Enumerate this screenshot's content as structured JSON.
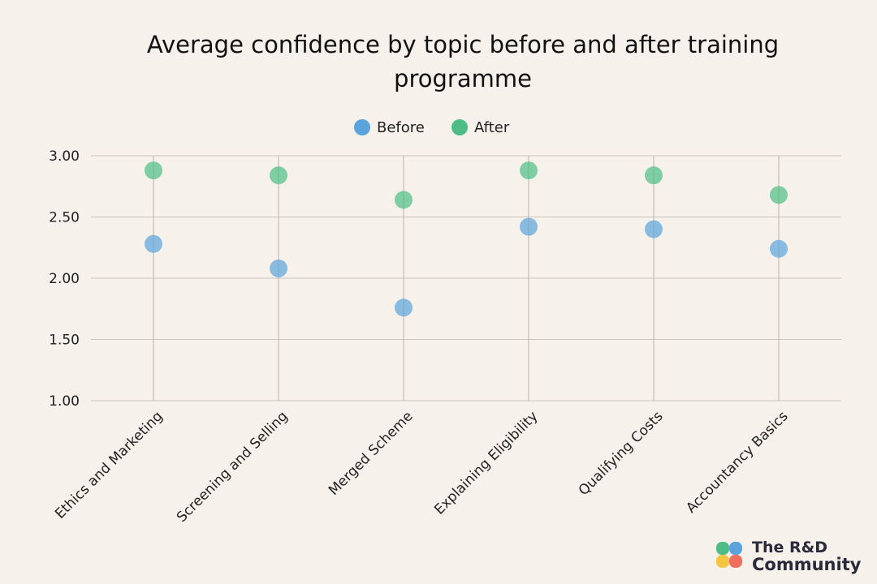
{
  "chart_data": {
    "type": "scatter",
    "title": "Average confidence by topic before and after training programme",
    "categories": [
      "Ethics and Marketing",
      "Screening and Selling",
      "Merged Scheme",
      "Explaining Eligibility",
      "Qualifying Costs",
      "Accountancy Basics"
    ],
    "series": [
      {
        "name": "Before",
        "color": "#5ba3dc",
        "values": [
          2.28,
          2.08,
          1.76,
          2.42,
          2.4,
          2.24
        ]
      },
      {
        "name": "After",
        "color": "#4dbd85",
        "values": [
          2.88,
          2.84,
          2.64,
          2.88,
          2.84,
          2.68
        ]
      }
    ],
    "ylim": [
      1.0,
      3.0
    ],
    "yticks": [
      "1.00",
      "1.50",
      "2.00",
      "2.50",
      "3.00"
    ],
    "grid": true,
    "legend_position": "top-center"
  },
  "branding": {
    "logo_line1": "The R&D",
    "logo_line2": "Community"
  }
}
